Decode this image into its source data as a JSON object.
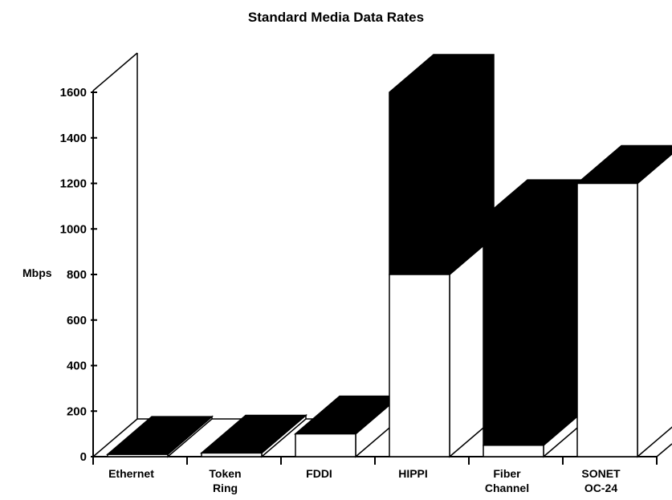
{
  "chart_data": {
    "type": "bar",
    "title": "Standard Media Data Rates",
    "ylabel": "Mbps",
    "xlabel": "",
    "ylim": [
      0,
      1600
    ],
    "yticks": [
      0,
      200,
      400,
      600,
      800,
      1000,
      1200,
      1400,
      1600
    ],
    "categories": [
      [
        "Ethernet"
      ],
      [
        "Token",
        "Ring"
      ],
      [
        "FDDI"
      ],
      [
        "HIPPI"
      ],
      [
        "Fiber",
        "Channel"
      ],
      [
        "SONET",
        "OC-24"
      ]
    ],
    "series": [
      {
        "values": [
          10,
          16,
          100,
          800,
          50,
          1200
        ]
      },
      {
        "values": [
          10,
          16,
          100,
          1600,
          1050,
          1200
        ]
      }
    ],
    "style": "3d",
    "grid": false,
    "colors": {
      "front": "#ffffff",
      "top": "#000000",
      "side": "#ffffff",
      "stroke": "#000000"
    }
  }
}
